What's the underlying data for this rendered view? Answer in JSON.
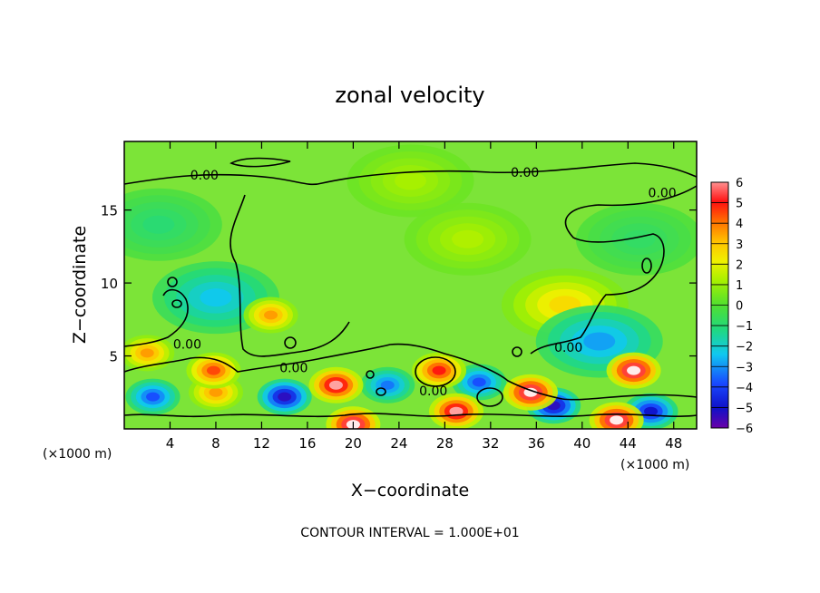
{
  "chart_data": {
    "type": "heatmap",
    "title": "zonal velocity",
    "xlabel": "X−coordinate",
    "ylabel": "Z−coordinate",
    "x_unit_left": "(×1000 m)",
    "x_unit_right": "(×1000 m)",
    "xlim": [
      0,
      50
    ],
    "ylim": [
      0,
      19.7
    ],
    "x_ticks": [
      4,
      8,
      12,
      16,
      20,
      24,
      28,
      32,
      36,
      40,
      44,
      48
    ],
    "y_ticks": [
      5,
      10,
      15
    ],
    "colorbar": {
      "min": -6,
      "max": 6,
      "ticks": [
        "6",
        "5",
        "4",
        "3",
        "2",
        "1",
        "0",
        "−1",
        "−2",
        "−3",
        "−4",
        "−5",
        "−6"
      ]
    },
    "contour_label": "0.00",
    "contour_labels": [
      {
        "x": 7.0,
        "y": 17.4
      },
      {
        "x": 35.0,
        "y": 17.6
      },
      {
        "x": 47.0,
        "y": 16.2
      },
      {
        "x": 5.5,
        "y": 5.8
      },
      {
        "x": 14.8,
        "y": 4.2
      },
      {
        "x": 27.0,
        "y": 2.6
      },
      {
        "x": 38.8,
        "y": 5.6
      }
    ],
    "annotation": "CONTOUR INTERVAL = 1.000E+01",
    "features": [
      {
        "x": 12.8,
        "z": 7.8,
        "value": 3.5
      },
      {
        "x": 38.5,
        "z": 8.5,
        "value": 2.5
      },
      {
        "x": 44.5,
        "z": 4.0,
        "value": 6.5
      },
      {
        "x": 18.5,
        "z": 3.0,
        "value": 6.0
      },
      {
        "x": 27.5,
        "z": 4.0,
        "value": 5.0
      },
      {
        "x": 7.8,
        "z": 4.0,
        "value": 4.5
      },
      {
        "x": 2.0,
        "z": 5.2,
        "value": 3.5
      },
      {
        "x": 8.0,
        "z": 2.5,
        "value": 3.5
      },
      {
        "x": 20.0,
        "z": 0.3,
        "value": 6.5
      },
      {
        "x": 35.5,
        "z": 2.5,
        "value": 6.5
      },
      {
        "x": 43.0,
        "z": 0.6,
        "value": 6.5
      },
      {
        "x": 29.0,
        "z": 1.2,
        "value": 6.0
      },
      {
        "x": 8.0,
        "z": 9.0,
        "value": -2.5
      },
      {
        "x": 14.0,
        "z": 2.2,
        "value": -5.5
      },
      {
        "x": 23.0,
        "z": 3.0,
        "value": -3.5
      },
      {
        "x": 31.0,
        "z": 3.2,
        "value": -4.0
      },
      {
        "x": 37.5,
        "z": 1.6,
        "value": -5.5
      },
      {
        "x": 41.5,
        "z": 6.0,
        "value": -3.0
      },
      {
        "x": 2.5,
        "z": 2.2,
        "value": -4.0
      },
      {
        "x": 46.0,
        "z": 1.2,
        "value": -5.0
      },
      {
        "x": 25.0,
        "z": 17.0,
        "value": 1.2
      },
      {
        "x": 30.0,
        "z": 13.0,
        "value": 1.3
      },
      {
        "x": 3.0,
        "z": 14.0,
        "value": -1.0
      },
      {
        "x": 45.0,
        "z": 13.0,
        "value": -0.8
      }
    ]
  }
}
